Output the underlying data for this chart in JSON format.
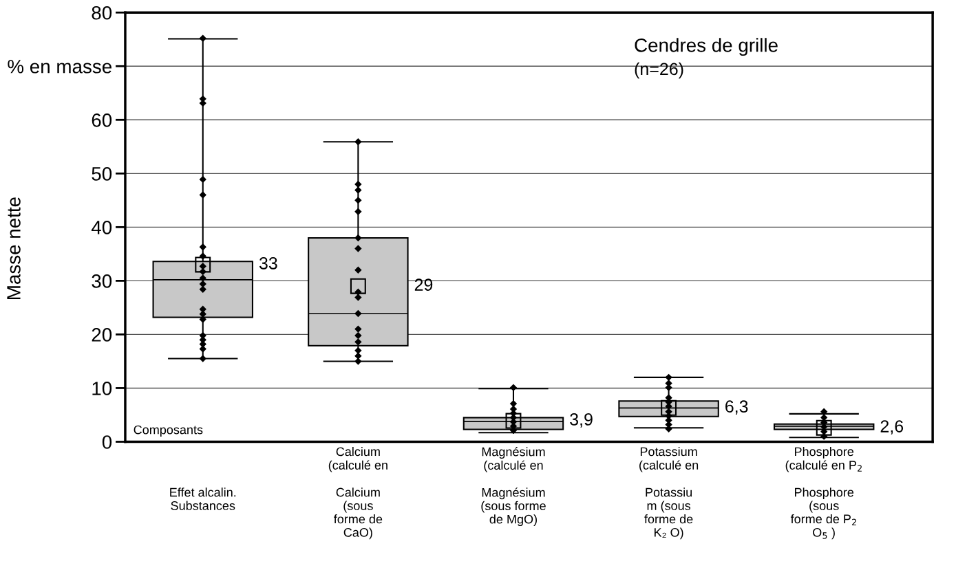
{
  "chart_data": {
    "type": "box",
    "title": "Cendres de grille",
    "subtitle": "(n=26)",
    "ylabel": "Masse nette",
    "categories": [
      "Effet alcalin.\nSubstances",
      "Calcium\n(sous\nforme de\nCaO)",
      "Magnésium\n(sous forme\nde MgO)",
      "Potassiu\nm (sous\nforme de\nK₂ O)",
      "Phosphore\n(sous\nforme de P$_{2}$\nO$_{5}$ )"
    ],
    "color": "#c8c8c8",
    "boxes": [
      {
        "low": 15.5,
        "q1": 23.2,
        "median": 30.2,
        "q3": 33.6,
        "high": 75.1,
        "mean": 33
      },
      {
        "low": 15.0,
        "q1": 17.9,
        "median": 23.9,
        "q3": 38.0,
        "high": 55.9,
        "mean": 29
      },
      {
        "low": 1.7,
        "q1": 2.3,
        "median": 3.8,
        "q3": 4.5,
        "high": 9.9,
        "mean": 3.9
      },
      {
        "low": 2.6,
        "q1": 4.7,
        "median": 6.3,
        "q3": 7.6,
        "high": 12.0,
        "mean": 6.3
      },
      {
        "low": 0.8,
        "q1": 2.3,
        "median": 2.9,
        "q3": 3.3,
        "high": 5.2,
        "mean": 2.6
      }
    ],
    "series": [
      {
        "type": "scatter",
        "color": "#000000",
        "x": [
          "Effet alcalin.\nSubstances",
          "Effet alcalin.\nSubstances",
          "Effet alcalin.\nSubstances",
          "Effet alcalin.\nSubstances",
          "Effet alcalin.\nSubstances",
          "Effet alcalin.\nSubstances",
          "Effet alcalin.\nSubstances",
          "Effet alcalin.\nSubstances",
          "Effet alcalin.\nSubstances",
          "Effet alcalin.\nSubstances",
          "Effet alcalin.\nSubstances",
          "Effet alcalin.\nSubstances",
          "Effet alcalin.\nSubstances",
          "Effet alcalin.\nSubstances",
          "Effet alcalin.\nSubstances",
          "Effet alcalin.\nSubstances",
          "Effet alcalin.\nSubstances",
          "Effet alcalin.\nSubstances",
          "Effet alcalin.\nSubstances",
          "Effet alcalin.\nSubstances"
        ],
        "values": [
          75.2,
          63.9,
          63.1,
          48.9,
          46.0,
          36.3,
          34.6,
          32.7,
          31.7,
          30.5,
          29.4,
          28.4,
          24.7,
          23.8,
          22.8,
          19.8,
          19.0,
          18.2,
          17.3,
          15.5
        ]
      },
      {
        "type": "scatter",
        "color": "#000000",
        "x": [
          "Calcium\n(sous\nforme de\nCaO)",
          "Calcium\n(sous\nforme de\nCaO)",
          "Calcium\n(sous\nforme de\nCaO)",
          "Calcium\n(sous\nforme de\nCaO)",
          "Calcium\n(sous\nforme de\nCaO)",
          "Calcium\n(sous\nforme de\nCaO)",
          "Calcium\n(sous\nforme de\nCaO)",
          "Calcium\n(sous\nforme de\nCaO)",
          "Calcium\n(sous\nforme de\nCaO)",
          "Calcium\n(sous\nforme de\nCaO)",
          "Calcium\n(sous\nforme de\nCaO)",
          "Calcium\n(sous\nforme de\nCaO)",
          "Calcium\n(sous\nforme de\nCaO)",
          "Calcium\n(sous\nforme de\nCaO)",
          "Calcium\n(sous\nforme de\nCaO)",
          "Calcium\n(sous\nforme de\nCaO)",
          "Calcium\n(sous\nforme de\nCaO)"
        ],
        "values": [
          55.9,
          48.0,
          46.9,
          45.0,
          42.9,
          38.0,
          36.0,
          32.0,
          27.9,
          26.9,
          23.9,
          21.0,
          19.8,
          18.6,
          17.0,
          16.0,
          15.0
        ]
      },
      {
        "type": "scatter",
        "color": "#000000",
        "x": [
          "Magnésium\n(sous forme\nde MgO)",
          "Magnésium\n(sous forme\nde MgO)",
          "Magnésium\n(sous forme\nde MgO)",
          "Magnésium\n(sous forme\nde MgO)",
          "Magnésium\n(sous forme\nde MgO)",
          "Magnésium\n(sous forme\nde MgO)",
          "Magnésium\n(sous forme\nde MgO)",
          "Magnésium\n(sous forme\nde MgO)"
        ],
        "values": [
          10.1,
          7.1,
          6.1,
          5.3,
          4.5,
          3.7,
          2.9,
          2.1
        ]
      },
      {
        "type": "scatter",
        "color": "#000000",
        "x": [
          "Potassiu\nm (sous\nforme de\nK₂ O)",
          "Potassiu\nm (sous\nforme de\nK₂ O)",
          "Potassiu\nm (sous\nforme de\nK₂ O)",
          "Potassiu\nm (sous\nforme de\nK₂ O)",
          "Potassiu\nm (sous\nforme de\nK₂ O)",
          "Potassiu\nm (sous\nforme de\nK₂ O)",
          "Potassiu\nm (sous\nforme de\nK₂ O)",
          "Potassiu\nm (sous\nforme de\nK₂ O)",
          "Potassiu\nm (sous\nforme de\nK₂ O)",
          "Potassiu\nm (sous\nforme de\nK₂ O)",
          "Potassiu\nm (sous\nforme de\nK₂ O)"
        ],
        "values": [
          12.0,
          10.9,
          10.1,
          8.2,
          7.4,
          6.6,
          5.6,
          4.8,
          4.0,
          3.2,
          2.4
        ]
      },
      {
        "type": "scatter",
        "color": "#000000",
        "x": [
          "Phosphore\n(sous\nforme de P$_{2}$\nO$_{5}$ )",
          "Phosphore\n(sous\nforme de P$_{2}$\nO$_{5}$ )",
          "Phosphore\n(sous\nforme de P$_{2}$\nO$_{5}$ )",
          "Phosphore\n(sous\nforme de P$_{2}$\nO$_{5}$ )",
          "Phosphore\n(sous\nforme de P$_{2}$\nO$_{5}$ )",
          "Phosphore\n(sous\nforme de P$_{2}$\nO$_{5}$ )"
        ],
        "values": [
          5.6,
          4.5,
          3.6,
          2.8,
          1.9,
          1.0
        ]
      }
    ],
    "marker": "diamond",
    "ylim": [
      0,
      80
    ],
    "yticks": [
      0,
      10,
      20,
      30,
      40,
      50,
      60,
      {
        "value": 70,
        "label": "% en masse"
      },
      80
    ],
    "grid": "y",
    "annotations": [
      "Composants",
      "Calcium\n(calculé en",
      "Magnésium\n(calculé en",
      "Potassium\n(calculé en",
      "Phosphore\n(calculé en P$_{2}$",
      "33",
      "29",
      "3,9",
      "6,3",
      "2,6"
    ]
  }
}
